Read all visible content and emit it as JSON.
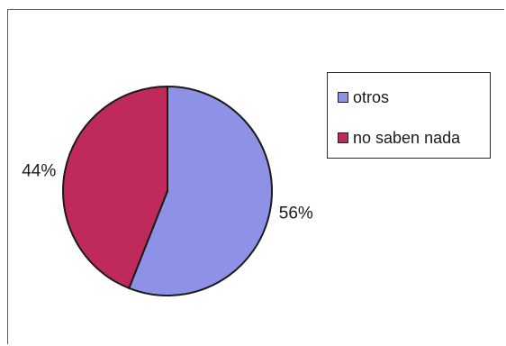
{
  "chart_data": {
    "type": "pie",
    "slices": [
      {
        "name": "otros",
        "value": 56,
        "label": "56%",
        "color": "#8d92e6"
      },
      {
        "name": "no saben nada",
        "value": 44,
        "label": "44%",
        "color": "#c02a5a"
      }
    ],
    "legend": {
      "placement": "right",
      "items": [
        "otros",
        "no saben nada"
      ]
    }
  }
}
